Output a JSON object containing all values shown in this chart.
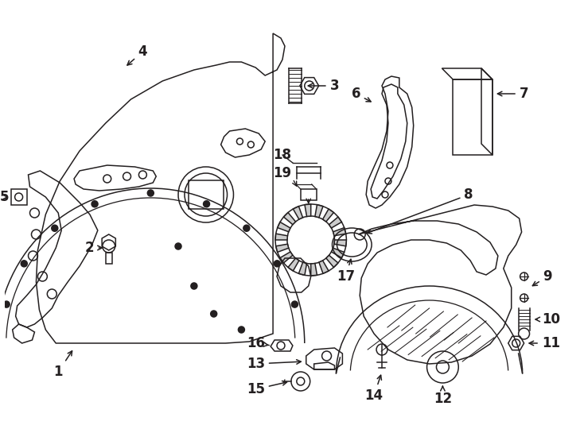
{
  "bg_color": "#ffffff",
  "line_color": "#231f20",
  "lw": 1.1,
  "fig_width": 7.34,
  "fig_height": 5.4,
  "dpi": 100
}
